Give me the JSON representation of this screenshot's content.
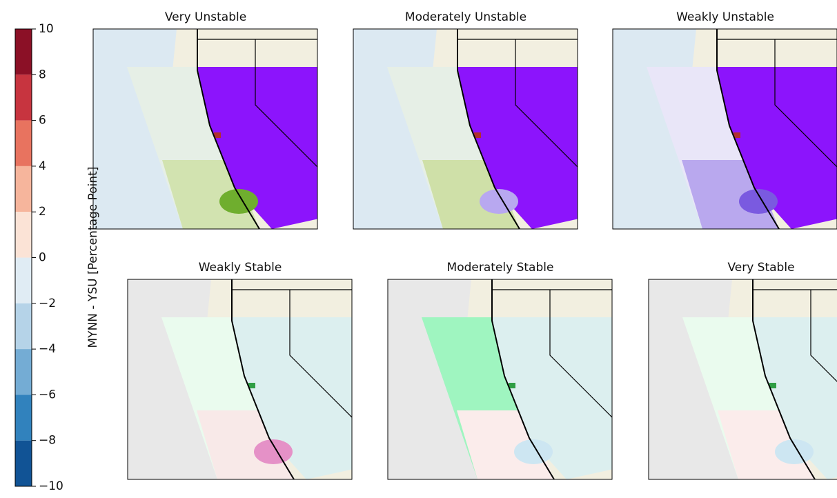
{
  "panels": [
    {
      "title": "Very Unstable"
    },
    {
      "title": "Moderately Unstable"
    },
    {
      "title": "Weakly Unstable"
    },
    {
      "title": "Weakly Stable"
    },
    {
      "title": "Moderately Stable"
    },
    {
      "title": "Very Stable"
    }
  ],
  "colorbar": {
    "label": "MYNN - YSU [Percentage Point]",
    "lim": [
      -10,
      10
    ],
    "ticks": [
      10,
      8,
      6,
      4,
      2,
      0,
      {
        "value": -2,
        "label": "−2"
      },
      {
        "value": -4,
        "label": "−4"
      },
      {
        "value": -6,
        "label": "−6"
      },
      {
        "value": -8,
        "label": "−8"
      },
      {
        "value": -10,
        "label": "−10"
      }
    ]
  }
}
